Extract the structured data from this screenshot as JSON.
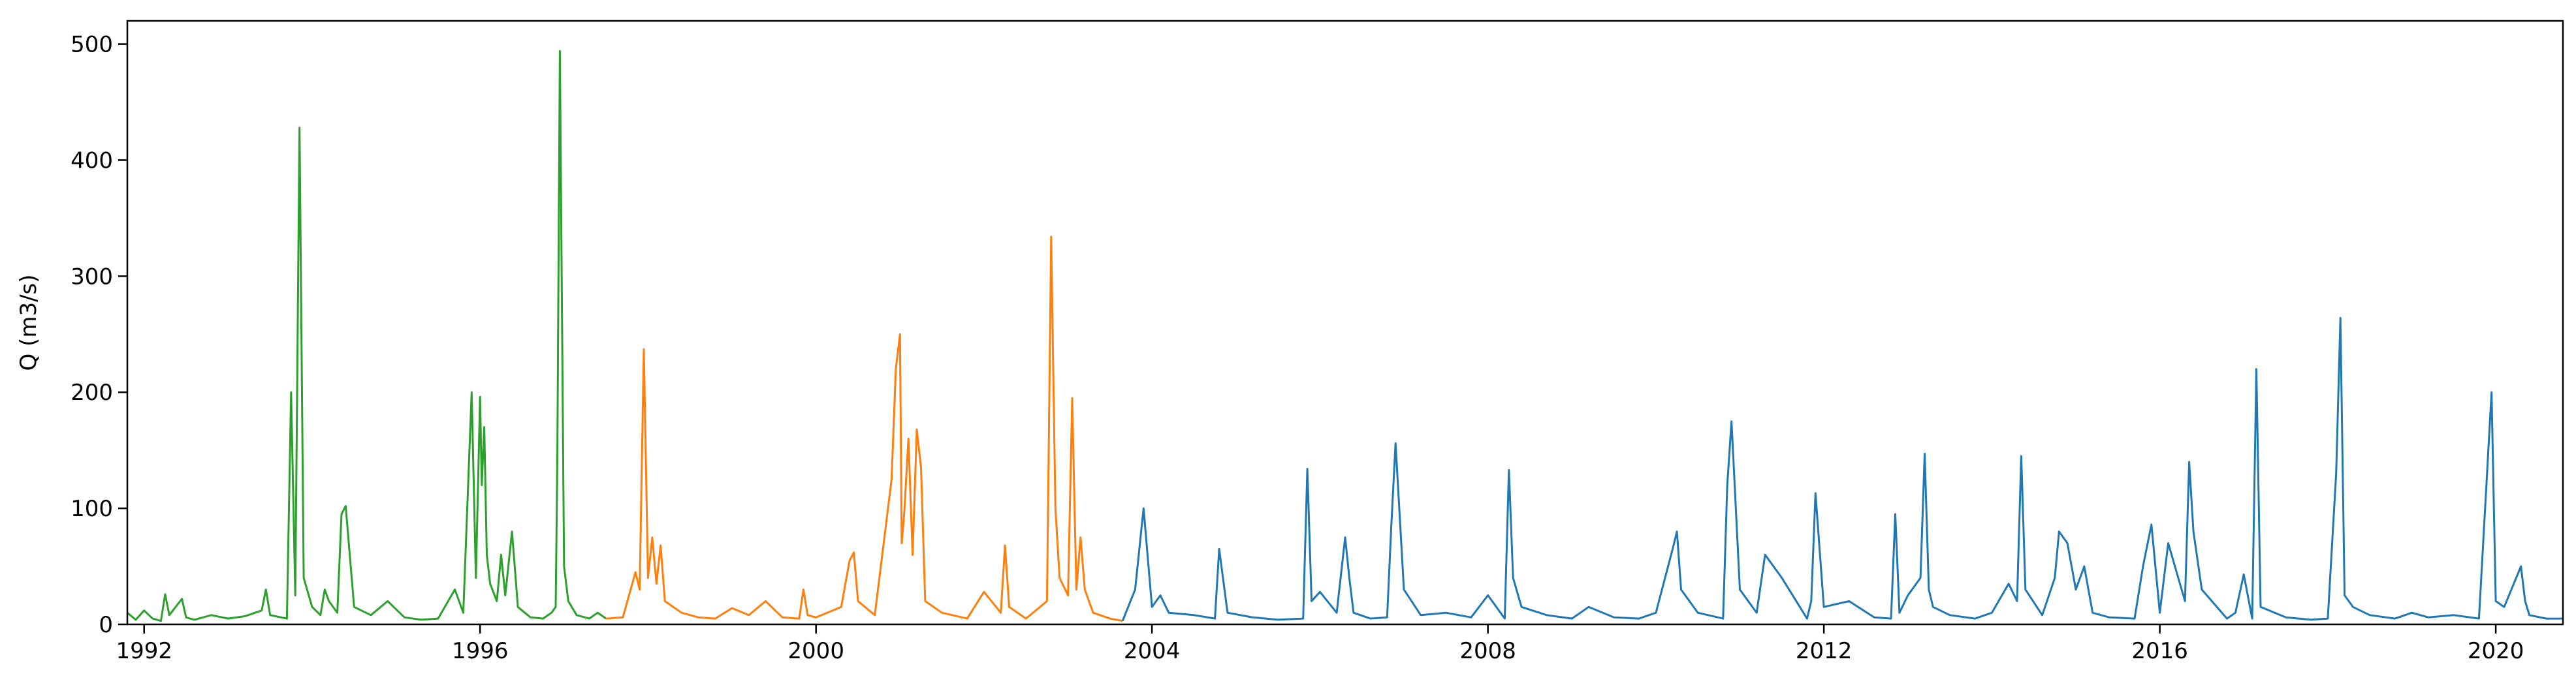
{
  "chart_data": {
    "type": "line",
    "title": "",
    "xlabel": "",
    "ylabel": "Q (m3/s)",
    "xlim": [
      1991.8,
      2020.8
    ],
    "ylim": [
      0,
      520
    ],
    "grid": false,
    "legend": "none",
    "xticks": [
      {
        "value": 1992,
        "label": "1992"
      },
      {
        "value": 1996,
        "label": "1996"
      },
      {
        "value": 2000,
        "label": "2000"
      },
      {
        "value": 2004,
        "label": "2004"
      },
      {
        "value": 2008,
        "label": "2008"
      },
      {
        "value": 2012,
        "label": "2012"
      },
      {
        "value": 2016,
        "label": "2016"
      },
      {
        "value": 2020,
        "label": "2020"
      }
    ],
    "yticks": [
      {
        "value": 0,
        "label": "0"
      },
      {
        "value": 100,
        "label": "100"
      },
      {
        "value": 200,
        "label": "200"
      },
      {
        "value": 300,
        "label": "300"
      },
      {
        "value": 400,
        "label": "400"
      },
      {
        "value": 500,
        "label": "500"
      }
    ],
    "series": [
      {
        "color": "#2ca02c",
        "x": [
          1991.8,
          1991.9,
          1992.0,
          1992.1,
          1992.2,
          1992.25,
          1992.3,
          1992.45,
          1992.5,
          1992.6,
          1992.8,
          1993.0,
          1993.2,
          1993.4,
          1993.45,
          1993.5,
          1993.7,
          1993.75,
          1993.8,
          1993.85,
          1993.9,
          1994.0,
          1994.1,
          1994.15,
          1994.2,
          1994.3,
          1994.35,
          1994.4,
          1994.5,
          1994.7,
          1994.9,
          1995.1,
          1995.3,
          1995.5,
          1995.7,
          1995.8,
          1995.9,
          1995.95,
          1996.0,
          1996.02,
          1996.05,
          1996.08,
          1996.12,
          1996.2,
          1996.25,
          1996.3,
          1996.38,
          1996.45,
          1996.6,
          1996.75,
          1996.85,
          1996.9,
          1996.92,
          1996.95,
          1997.0,
          1997.05,
          1997.15,
          1997.3,
          1997.4,
          1997.5
        ],
        "y": [
          10,
          4,
          12,
          5,
          3,
          26,
          8,
          22,
          6,
          4,
          8,
          5,
          7,
          12,
          30,
          8,
          5,
          200,
          25,
          428,
          40,
          15,
          8,
          30,
          20,
          10,
          95,
          102,
          15,
          8,
          20,
          6,
          4,
          5,
          30,
          10,
          200,
          40,
          196,
          120,
          170,
          60,
          35,
          20,
          60,
          25,
          80,
          15,
          6,
          5,
          10,
          15,
          140,
          494,
          50,
          20,
          8,
          5,
          10,
          5
        ]
      },
      {
        "color": "#ff7f0e",
        "x": [
          1997.5,
          1997.7,
          1997.85,
          1997.9,
          1997.95,
          1998.0,
          1998.05,
          1998.1,
          1998.15,
          1998.2,
          1998.4,
          1998.6,
          1998.8,
          1999.0,
          1999.2,
          1999.4,
          1999.6,
          1999.8,
          1999.85,
          1999.9,
          2000.0,
          2000.3,
          2000.4,
          2000.45,
          2000.5,
          2000.7,
          2000.9,
          2000.95,
          2001.0,
          2001.02,
          2001.05,
          2001.1,
          2001.15,
          2001.2,
          2001.25,
          2001.3,
          2001.5,
          2001.8,
          2002.0,
          2002.2,
          2002.25,
          2002.3,
          2002.5,
          2002.75,
          2002.8,
          2002.85,
          2002.9,
          2003.0,
          2003.05,
          2003.1,
          2003.15,
          2003.2,
          2003.3,
          2003.5,
          2003.65
        ],
        "y": [
          5,
          6,
          45,
          30,
          237,
          40,
          75,
          35,
          68,
          20,
          10,
          6,
          5,
          14,
          8,
          20,
          6,
          5,
          30,
          8,
          6,
          15,
          55,
          62,
          20,
          8,
          125,
          220,
          250,
          70,
          95,
          160,
          60,
          168,
          135,
          20,
          10,
          5,
          28,
          10,
          68,
          15,
          5,
          20,
          334,
          100,
          40,
          25,
          195,
          30,
          75,
          30,
          10,
          5,
          3
        ]
      },
      {
        "color": "#1f77b4",
        "x": [
          2003.65,
          2003.8,
          2003.9,
          2004.0,
          2004.1,
          2004.2,
          2004.5,
          2004.75,
          2004.8,
          2004.9,
          2005.2,
          2005.5,
          2005.8,
          2005.85,
          2005.9,
          2006.0,
          2006.2,
          2006.3,
          2006.35,
          2006.4,
          2006.6,
          2006.8,
          2006.85,
          2006.9,
          2007.0,
          2007.2,
          2007.5,
          2007.8,
          2008.0,
          2008.2,
          2008.25,
          2008.3,
          2008.4,
          2008.7,
          2009.0,
          2009.2,
          2009.5,
          2009.8,
          2010.0,
          2010.2,
          2010.25,
          2010.3,
          2010.5,
          2010.8,
          2010.85,
          2010.9,
          2011.0,
          2011.2,
          2011.3,
          2011.5,
          2011.8,
          2011.85,
          2011.9,
          2012.0,
          2012.3,
          2012.6,
          2012.8,
          2012.85,
          2012.9,
          2013.0,
          2013.15,
          2013.2,
          2013.25,
          2013.3,
          2013.5,
          2013.8,
          2014.0,
          2014.2,
          2014.3,
          2014.35,
          2014.4,
          2014.6,
          2014.75,
          2014.8,
          2014.9,
          2015.0,
          2015.1,
          2015.2,
          2015.4,
          2015.7,
          2015.8,
          2015.9,
          2016.0,
          2016.1,
          2016.3,
          2016.35,
          2016.4,
          2016.5,
          2016.8,
          2016.9,
          2017.0,
          2017.1,
          2017.15,
          2017.2,
          2017.5,
          2017.8,
          2018.0,
          2018.1,
          2018.15,
          2018.2,
          2018.3,
          2018.5,
          2018.8,
          2019.0,
          2019.2,
          2019.5,
          2019.8,
          2019.95,
          2020.0,
          2020.1,
          2020.3,
          2020.35,
          2020.4,
          2020.6,
          2020.8
        ],
        "y": [
          3,
          30,
          100,
          15,
          25,
          10,
          8,
          5,
          65,
          10,
          6,
          4,
          5,
          134,
          20,
          28,
          10,
          75,
          40,
          10,
          5,
          6,
          85,
          156,
          30,
          8,
          10,
          6,
          25,
          5,
          133,
          40,
          15,
          8,
          5,
          15,
          6,
          5,
          10,
          65,
          80,
          30,
          10,
          5,
          120,
          175,
          30,
          10,
          60,
          40,
          5,
          20,
          113,
          15,
          20,
          6,
          5,
          95,
          10,
          25,
          40,
          147,
          30,
          15,
          8,
          5,
          10,
          35,
          20,
          145,
          30,
          8,
          40,
          80,
          70,
          30,
          50,
          10,
          6,
          5,
          50,
          86,
          10,
          70,
          20,
          140,
          80,
          30,
          5,
          10,
          43,
          5,
          220,
          15,
          6,
          4,
          5,
          130,
          264,
          25,
          15,
          8,
          5,
          10,
          6,
          8,
          5,
          200,
          20,
          15,
          50,
          20,
          8,
          5,
          5
        ]
      }
    ]
  }
}
